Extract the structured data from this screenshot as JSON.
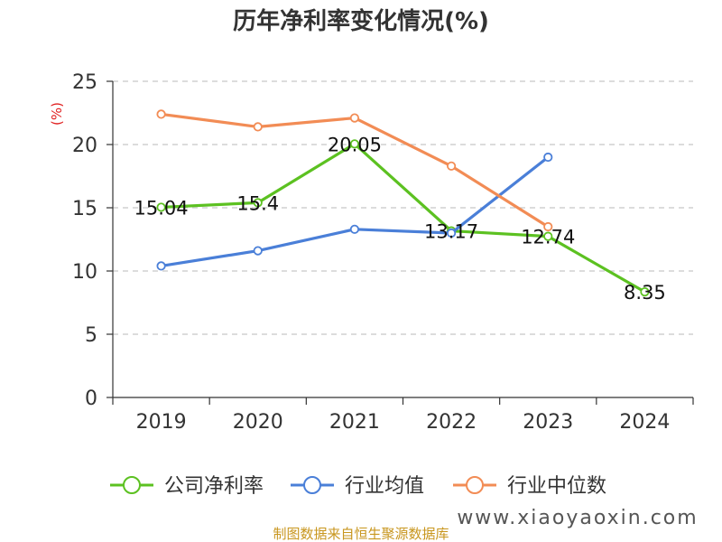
{
  "chart_data": {
    "type": "line",
    "title": "历年净利率变化情况(%)",
    "ylabel": "(%)",
    "categories": [
      "2019",
      "2020",
      "2021",
      "2022",
      "2023",
      "2024"
    ],
    "ylim": [
      0,
      25
    ],
    "yticks": [
      0,
      5,
      10,
      15,
      20,
      25
    ],
    "grid": true,
    "legend_position": "bottom",
    "series": [
      {
        "name": "公司净利率",
        "color": "#5cc121",
        "values": [
          15.04,
          15.4,
          20.05,
          13.17,
          12.74,
          8.35
        ],
        "labels": [
          "15.04",
          "15.4",
          "20.05",
          "13.17",
          "12.74",
          "8.35"
        ]
      },
      {
        "name": "行业均值",
        "color": "#4a7fd8",
        "values": [
          10.4,
          11.6,
          13.3,
          13.0,
          19.0,
          null
        ]
      },
      {
        "name": "行业中位数",
        "color": "#f28c55",
        "values": [
          22.4,
          21.4,
          22.1,
          18.3,
          13.5,
          null
        ]
      }
    ]
  },
  "footer": {
    "source": "制图数据来自恒生聚源数据库",
    "watermark": "www.xiaoyaoxin.com"
  }
}
